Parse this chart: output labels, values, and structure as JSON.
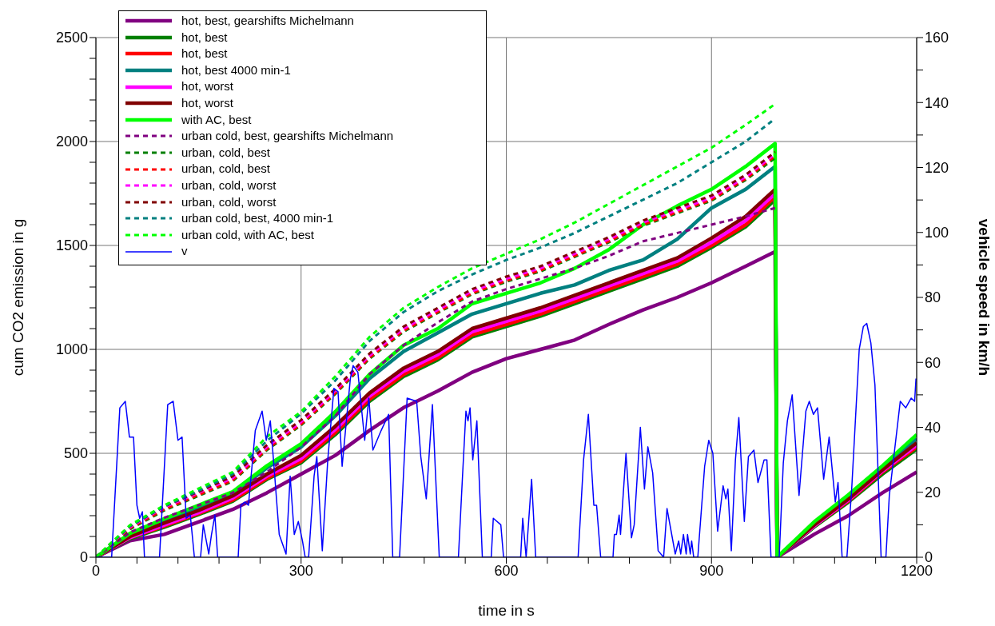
{
  "chart_data": {
    "type": "line",
    "xlabel": "time in s",
    "ylabel": "cum CO2 emission in g",
    "y2label": "vehicle speed in km/h",
    "xlim": [
      0,
      1200
    ],
    "xticks": [
      0,
      {
        "value": 60,
        "label": null
      },
      {
        "value": 120,
        "label": null
      },
      {
        "value": 180,
        "label": null
      },
      {
        "value": 240,
        "label": null
      },
      300,
      {
        "value": 360,
        "label": null
      },
      {
        "value": 420,
        "label": null
      },
      {
        "value": 480,
        "label": null
      },
      {
        "value": 540,
        "label": null
      },
      600,
      {
        "value": 660,
        "label": null
      },
      {
        "value": 720,
        "label": null
      },
      {
        "value": 780,
        "label": null
      },
      {
        "value": 840,
        "label": null
      },
      900,
      {
        "value": 960,
        "label": null
      },
      {
        "value": 1020,
        "label": null
      },
      {
        "value": 1080,
        "label": null
      },
      {
        "value": 1140,
        "label": null
      },
      1200
    ],
    "ylim": [
      0,
      2500
    ],
    "yticks": [
      0,
      {
        "value": 100,
        "label": null
      },
      {
        "value": 200,
        "label": null
      },
      {
        "value": 300,
        "label": null
      },
      {
        "value": 400,
        "label": null
      },
      500,
      {
        "value": 600,
        "label": null
      },
      {
        "value": 700,
        "label": null
      },
      {
        "value": 800,
        "label": null
      },
      {
        "value": 900,
        "label": null
      },
      1000,
      {
        "value": 1100,
        "label": null
      },
      {
        "value": 1200,
        "label": null
      },
      {
        "value": 1300,
        "label": null
      },
      {
        "value": 1400,
        "label": null
      },
      1500,
      {
        "value": 1600,
        "label": null
      },
      {
        "value": 1700,
        "label": null
      },
      {
        "value": 1800,
        "label": null
      },
      {
        "value": 1900,
        "label": null
      },
      2000,
      {
        "value": 2100,
        "label": null
      },
      {
        "value": 2200,
        "label": null
      },
      {
        "value": 2300,
        "label": null
      },
      {
        "value": 2400,
        "label": null
      },
      2500
    ],
    "y2lim": [
      0,
      160
    ],
    "y2ticks": [
      0,
      {
        "value": 10,
        "label": null
      },
      20,
      {
        "value": 30,
        "label": null
      },
      40,
      {
        "value": 50,
        "label": null
      },
      60,
      {
        "value": 70,
        "label": null
      },
      80,
      {
        "value": 90,
        "label": null
      },
      100,
      {
        "value": 110,
        "label": null
      },
      120,
      {
        "value": 130,
        "label": null
      },
      140,
      {
        "value": 150,
        "label": null
      },
      160
    ],
    "grid": true,
    "legend": "top left",
    "marker": "none",
    "series": [
      {
        "name": "hot, best, gearshifts Michelmann",
        "color": "#800080",
        "line_style": "solid",
        "x": [
          0,
          50,
          100,
          150,
          200,
          250,
          300,
          350,
          400,
          450,
          500,
          550,
          600,
          650,
          700,
          750,
          800,
          850,
          900,
          950,
          993,
          996,
          1050,
          1100,
          1150,
          1200
        ],
        "values": [
          0,
          80,
          110,
          170,
          230,
          310,
          400,
          490,
          610,
          720,
          800,
          890,
          955,
          1000,
          1045,
          1120,
          1190,
          1250,
          1320,
          1400,
          1470,
          0,
          110,
          200,
          310,
          410
        ]
      },
      {
        "name": "hot, best",
        "color": "#008000",
        "line_style": "solid",
        "x": [
          0,
          50,
          100,
          150,
          200,
          250,
          300,
          350,
          400,
          450,
          500,
          550,
          600,
          650,
          700,
          750,
          800,
          850,
          900,
          950,
          993,
          996,
          1050,
          1100,
          1150,
          1200
        ],
        "values": [
          0,
          90,
          145,
          205,
          270,
          375,
          455,
          590,
          750,
          870,
          950,
          1060,
          1110,
          1160,
          1220,
          1280,
          1340,
          1400,
          1490,
          1590,
          1720,
          0,
          145,
          265,
          400,
          520
        ]
      },
      {
        "name": "hot, best",
        "color": "#ff0000",
        "line_style": "solid",
        "x": [
          0,
          50,
          100,
          150,
          200,
          250,
          300,
          350,
          400,
          450,
          500,
          550,
          600,
          650,
          700,
          750,
          800,
          850,
          900,
          950,
          993,
          996,
          1050,
          1100,
          1150,
          1200
        ],
        "values": [
          0,
          95,
          150,
          210,
          275,
          380,
          462,
          600,
          760,
          880,
          960,
          1070,
          1120,
          1170,
          1230,
          1290,
          1350,
          1410,
          1500,
          1600,
          1735,
          0,
          150,
          270,
          410,
          530
        ]
      },
      {
        "name": "hot, best 4000 min-1",
        "color": "#008080",
        "line_style": "solid",
        "x": [
          0,
          50,
          100,
          150,
          200,
          250,
          300,
          350,
          400,
          450,
          500,
          550,
          600,
          650,
          700,
          750,
          800,
          850,
          900,
          950,
          993,
          996,
          1050,
          1100,
          1150,
          1200
        ],
        "values": [
          0,
          110,
          175,
          240,
          305,
          430,
          530,
          680,
          860,
          990,
          1080,
          1170,
          1220,
          1270,
          1310,
          1380,
          1430,
          1530,
          1680,
          1770,
          1880,
          0,
          160,
          290,
          430,
          570
        ]
      },
      {
        "name": "hot, worst",
        "color": "#ff00ff",
        "line_style": "solid",
        "x": [
          0,
          50,
          100,
          150,
          200,
          250,
          300,
          350,
          400,
          450,
          500,
          550,
          600,
          650,
          700,
          750,
          800,
          850,
          900,
          950,
          993,
          996,
          1050,
          1100,
          1150,
          1200
        ],
        "values": [
          0,
          95,
          155,
          215,
          285,
          390,
          475,
          615,
          775,
          895,
          975,
          1085,
          1135,
          1185,
          1245,
          1305,
          1365,
          1425,
          1515,
          1620,
          1750,
          0,
          150,
          275,
          415,
          540
        ]
      },
      {
        "name": "hot, worst",
        "color": "#800000",
        "line_style": "solid",
        "x": [
          0,
          50,
          100,
          150,
          200,
          250,
          300,
          350,
          400,
          450,
          500,
          550,
          600,
          650,
          700,
          750,
          800,
          850,
          900,
          950,
          993,
          996,
          1050,
          1100,
          1150,
          1200
        ],
        "values": [
          0,
          100,
          165,
          225,
          295,
          400,
          490,
          630,
          790,
          910,
          990,
          1100,
          1150,
          1200,
          1260,
          1320,
          1380,
          1440,
          1535,
          1640,
          1770,
          0,
          155,
          280,
          420,
          550
        ]
      },
      {
        "name": "with AC, best",
        "color": "#00ff00",
        "line_style": "solid",
        "x": [
          0,
          50,
          100,
          150,
          200,
          250,
          300,
          350,
          400,
          450,
          500,
          550,
          600,
          650,
          700,
          750,
          800,
          850,
          900,
          950,
          993,
          996,
          1050,
          1100,
          1150,
          1200
        ],
        "values": [
          0,
          115,
          185,
          250,
          315,
          440,
          546,
          700,
          880,
          1020,
          1100,
          1220,
          1270,
          1320,
          1390,
          1480,
          1600,
          1690,
          1770,
          1880,
          1990,
          0,
          170,
          300,
          440,
          590
        ]
      },
      {
        "name": "urban cold, best, gearshifts Michelmann",
        "color": "#800080",
        "line_style": "dashed",
        "x": [
          0,
          50,
          100,
          150,
          200,
          250,
          300,
          350,
          400,
          450,
          500,
          550,
          600,
          650,
          700,
          750,
          800,
          850,
          900,
          950,
          993
        ],
        "values": [
          0,
          120,
          190,
          250,
          310,
          410,
          530,
          680,
          880,
          1020,
          1130,
          1230,
          1290,
          1340,
          1390,
          1450,
          1520,
          1560,
          1600,
          1640,
          1680
        ]
      },
      {
        "name": "urban, cold, best",
        "color": "#008000",
        "line_style": "dashed",
        "x": [
          0,
          50,
          100,
          150,
          200,
          250,
          300,
          350,
          400,
          450,
          500,
          550,
          600,
          650,
          700,
          750,
          800,
          850,
          900,
          950,
          993
        ],
        "values": [
          0,
          135,
          225,
          295,
          365,
          515,
          635,
          785,
          955,
          1085,
          1175,
          1265,
          1325,
          1375,
          1445,
          1515,
          1595,
          1655,
          1715,
          1815,
          1920
        ]
      },
      {
        "name": "urban, cold, best",
        "color": "#ff0000",
        "line_style": "dashed",
        "x": [
          0,
          50,
          100,
          150,
          200,
          250,
          300,
          350,
          400,
          450,
          500,
          550,
          600,
          650,
          700,
          750,
          800,
          850,
          900,
          950,
          993
        ],
        "values": [
          0,
          140,
          230,
          300,
          370,
          520,
          640,
          790,
          960,
          1090,
          1180,
          1270,
          1330,
          1380,
          1450,
          1520,
          1600,
          1660,
          1720,
          1820,
          1930
        ]
      },
      {
        "name": "urban, cold, worst",
        "color": "#ff00ff",
        "line_style": "dashed",
        "x": [
          0,
          50,
          100,
          150,
          200,
          250,
          300,
          350,
          400,
          450,
          500,
          550,
          600,
          650,
          700,
          750,
          800,
          850,
          900,
          950,
          993
        ],
        "values": [
          0,
          145,
          240,
          310,
          380,
          530,
          650,
          800,
          970,
          1100,
          1190,
          1280,
          1340,
          1390,
          1460,
          1530,
          1610,
          1670,
          1730,
          1830,
          1940
        ]
      },
      {
        "name": "urban, cold, worst",
        "color": "#800000",
        "line_style": "dashed",
        "x": [
          0,
          50,
          100,
          150,
          200,
          250,
          300,
          350,
          400,
          450,
          500,
          550,
          600,
          650,
          700,
          750,
          800,
          850,
          900,
          950,
          993
        ],
        "values": [
          0,
          150,
          245,
          315,
          390,
          540,
          660,
          810,
          980,
          1110,
          1200,
          1290,
          1350,
          1400,
          1470,
          1540,
          1620,
          1680,
          1740,
          1840,
          1950
        ]
      },
      {
        "name": "urban cold, best, 4000 min-1",
        "color": "#008080",
        "line_style": "dashed",
        "x": [
          0,
          50,
          100,
          150,
          200,
          250,
          300,
          350,
          400,
          450,
          500,
          550,
          600,
          650,
          700,
          750,
          800,
          850,
          900,
          950,
          993
        ],
        "values": [
          0,
          150,
          245,
          320,
          400,
          560,
          690,
          850,
          1040,
          1180,
          1280,
          1360,
          1430,
          1490,
          1560,
          1640,
          1720,
          1800,
          1900,
          2000,
          2110
        ]
      },
      {
        "name": "urban cold, with AC, best",
        "color": "#00ff00",
        "line_style": "dashed",
        "x": [
          0,
          50,
          100,
          150,
          200,
          250,
          300,
          350,
          400,
          450,
          500,
          550,
          600,
          650,
          700,
          750,
          800,
          850,
          900,
          950,
          993
        ],
        "values": [
          0,
          155,
          250,
          330,
          410,
          580,
          700,
          870,
          1060,
          1200,
          1300,
          1390,
          1460,
          1530,
          1610,
          1700,
          1790,
          1880,
          1970,
          2080,
          2180
        ]
      },
      {
        "name": "v",
        "color": "#0000ff",
        "line_style": "solid",
        "axis": "y2",
        "x": [
          0,
          23,
          35,
          43,
          49,
          55,
          60,
          64,
          68,
          71,
          93,
          105,
          113,
          120,
          126,
          132,
          138,
          144,
          153,
          157,
          165,
          169,
          174,
          178,
          208,
          212,
          218,
          223,
          233,
          243,
          249,
          255,
          260,
          268,
          278,
          284,
          290,
          296,
          302,
          306,
          311,
          319,
          323,
          331,
          339,
          348,
          354,
          360,
          372,
          376,
          383,
          393,
          399,
          405,
          417,
          428,
          434,
          444,
          455,
          469,
          475,
          483,
          492,
          502,
          530,
          536,
          541,
          544,
          547,
          551,
          557,
          565,
          578,
          581,
          592,
          596,
          621,
          624,
          629,
          637,
          643,
          705,
          713,
          720,
          728,
          732,
          738,
          756,
          758,
          761,
          765,
          767,
          775,
          783,
          787,
          796,
          802,
          807,
          814,
          822,
          830,
          835,
          841,
          847,
          852,
          855,
          859,
          863,
          865,
          869,
          871,
          874,
          880,
          890,
          896,
          902,
          909,
          917,
          921,
          924,
          929,
          935,
          940,
          948,
          954,
          962,
          968,
          977,
          981,
          987,
          999,
          1005,
          1011,
          1018,
          1028,
          1038,
          1043,
          1049,
          1055,
          1064,
          1072,
          1081,
          1085,
          1091,
          1098,
          1105,
          1116,
          1122,
          1127,
          1133,
          1139,
          1148,
          1155,
          1160,
          1176,
          1184,
          1192,
          1197,
          1199
        ],
        "values": [
          0,
          0,
          46,
          48,
          37,
          37,
          16,
          12,
          14,
          0,
          0,
          47,
          48,
          36,
          37,
          12,
          13,
          0,
          0,
          10,
          1,
          7,
          13,
          0,
          0,
          16,
          17,
          16,
          39,
          45,
          36,
          42,
          29,
          7,
          1,
          25,
          7,
          11,
          5,
          0,
          0,
          25,
          31,
          2,
          30,
          52,
          51,
          28,
          55,
          59,
          57,
          36,
          49,
          33,
          39,
          44,
          0,
          0,
          49,
          48,
          31,
          18,
          47,
          0,
          0,
          25,
          45,
          42,
          46,
          30,
          42,
          0,
          0,
          12,
          10,
          0,
          0,
          12,
          0,
          24,
          0,
          0,
          30,
          44,
          16,
          16,
          0,
          0,
          7,
          7,
          13,
          7,
          32,
          6,
          10,
          40,
          21,
          34,
          26,
          2,
          0,
          15,
          8,
          1,
          5,
          1,
          7,
          1,
          7,
          1,
          5,
          0,
          0,
          28,
          36,
          32,
          8,
          22,
          18,
          21,
          2,
          30,
          43,
          11,
          31,
          33,
          23,
          30,
          30,
          0,
          0,
          29,
          42,
          50,
          19,
          45,
          48,
          44,
          46,
          24,
          37,
          17,
          23,
          0,
          0,
          21,
          64,
          71,
          72,
          66,
          53,
          0,
          0,
          19,
          48,
          46,
          49,
          48,
          55
        ]
      }
    ]
  }
}
